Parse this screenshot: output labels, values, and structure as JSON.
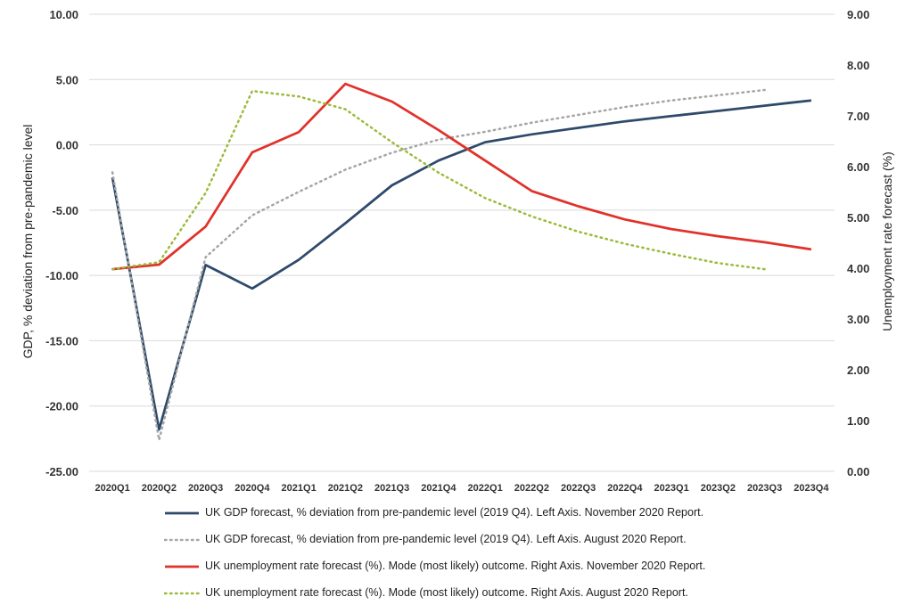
{
  "chart_data": {
    "type": "line",
    "categories": [
      "2020Q1",
      "2020Q2",
      "2020Q3",
      "2020Q4",
      "2021Q1",
      "2021Q2",
      "2021Q3",
      "2021Q4",
      "2022Q1",
      "2022Q2",
      "2022Q3",
      "2022Q4",
      "2023Q1",
      "2023Q2",
      "2023Q3",
      "2023Q4"
    ],
    "ylabel_left": "GDP, % deviation from pre-pandemic level",
    "ylabel_right": "Unemployment rate forecast (%)",
    "ylim_left": [
      -25,
      10
    ],
    "ylim_right": [
      0,
      9
    ],
    "yticks_left": [
      "10.00",
      "5.00",
      "0.00",
      "-5.00",
      "-10.00",
      "-15.00",
      "-20.00",
      "-25.00"
    ],
    "yticks_right": [
      "9.00",
      "8.00",
      "7.00",
      "6.00",
      "5.00",
      "4.00",
      "3.00",
      "2.00",
      "1.00",
      "0.00"
    ],
    "series": [
      {
        "name": "UK GDP forecast, % deviation from pre-pandemic level (2019 Q4). Left Axis. November 2020 Report.",
        "axis": "left",
        "color": "#2E4A6B",
        "style": "solid",
        "values": [
          -2.5,
          -21.8,
          -9.2,
          -11.0,
          -8.8,
          -6.0,
          -3.1,
          -1.2,
          0.2,
          0.8,
          1.3,
          1.8,
          2.2,
          2.6,
          3.0,
          3.4
        ]
      },
      {
        "name": "UK GDP forecast, % deviation from pre-pandemic level (2019 Q4). Left Axis. August 2020 Report.",
        "axis": "left",
        "color": "#A6A6A6",
        "style": "dotted",
        "values": [
          -2.1,
          -22.6,
          -8.6,
          -5.4,
          -3.6,
          -1.9,
          -0.6,
          0.4,
          1.0,
          1.7,
          2.3,
          2.9,
          3.4,
          3.8,
          4.2,
          null
        ]
      },
      {
        "name": "UK unemployment rate forecast (%). Mode (most likely) outcome. Right Axis. November 2020 Report.",
        "axis": "right",
        "color": "#E0322A",
        "style": "solid",
        "values": [
          3.98,
          4.07,
          4.82,
          6.28,
          6.68,
          7.63,
          7.28,
          6.72,
          6.12,
          5.52,
          5.22,
          4.96,
          4.77,
          4.63,
          4.51,
          4.37
        ]
      },
      {
        "name": "UK unemployment rate forecast (%). Mode (most likely) outcome. Right Axis. August 2020 Report.",
        "axis": "right",
        "color": "#9BBB3B",
        "style": "dotted",
        "values": [
          3.98,
          4.12,
          5.48,
          7.49,
          7.38,
          7.13,
          6.48,
          5.88,
          5.38,
          5.02,
          4.72,
          4.48,
          4.28,
          4.1,
          3.98,
          null
        ]
      }
    ]
  }
}
